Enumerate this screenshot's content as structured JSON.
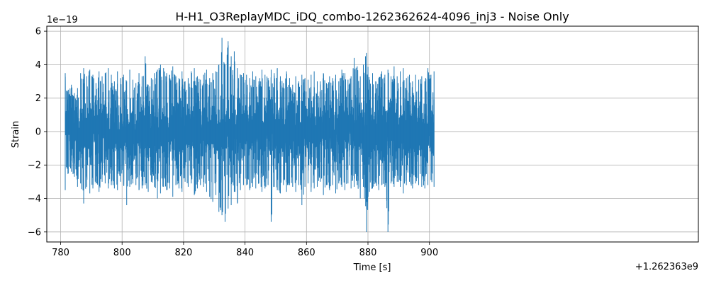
{
  "chart_data": {
    "type": "line",
    "title": "H-H1_O3ReplayMDC_iDQ_combo-1262362624-4096_inj3 - Noise Only",
    "xlabel": "Time [s]",
    "ylabel": "Strain",
    "x_offset_label": "+1.262363e9",
    "y_scale_label": "1e−19",
    "xlim": [
      775.5,
      987.5
    ],
    "ylim": [
      -6.6,
      6.3
    ],
    "x_ticks": [
      780,
      800,
      820,
      840,
      860,
      880,
      900
    ],
    "x_tick_labels": [
      "780",
      "800",
      "820",
      "840",
      "860",
      "880",
      "900"
    ],
    "y_ticks": [
      -6,
      -4,
      -2,
      0,
      2,
      4,
      6
    ],
    "y_tick_labels": [
      "−6",
      "−4",
      "−2",
      "0",
      "2",
      "4",
      "6"
    ],
    "grid": true,
    "series": [
      {
        "color": "#1f77b4",
        "x_start": 781.5,
        "x_end": 901.5,
        "envelope_x": [
          781.5,
          782.5,
          783.5,
          784.5,
          785.5,
          786.5,
          787.5,
          788.5,
          789.5,
          790.5,
          791.5,
          792.5,
          793.5,
          794.5,
          795.5,
          796.5,
          797.5,
          798.5,
          799.5,
          800.5,
          801.5,
          802.5,
          803.5,
          804.5,
          805.5,
          806.5,
          807.5,
          808.5,
          809.5,
          810.5,
          811.5,
          812.5,
          813.5,
          814.5,
          815.5,
          816.5,
          817.5,
          818.5,
          819.5,
          820.5,
          821.5,
          822.5,
          823.5,
          824.5,
          825.5,
          826.5,
          827.5,
          828.5,
          829.5,
          830.5,
          831.5,
          832.5,
          833.5,
          834.5,
          835.5,
          836.5,
          837.5,
          838.5,
          839.5,
          840.5,
          841.5,
          842.5,
          843.5,
          844.5,
          845.5,
          846.5,
          847.5,
          848.5,
          849.5,
          850.5,
          851.5,
          852.5,
          853.5,
          854.5,
          855.5,
          856.5,
          857.5,
          858.5,
          859.5,
          860.5,
          861.5,
          862.5,
          863.5,
          864.5,
          865.5,
          866.5,
          867.5,
          868.5,
          869.5,
          870.5,
          871.5,
          872.5,
          873.5,
          874.5,
          875.5,
          876.5,
          877.5,
          878.5,
          879.5,
          880.5,
          881.5,
          882.5,
          883.5,
          884.5,
          885.5,
          886.5,
          887.5,
          888.5,
          889.5,
          890.5,
          891.5,
          892.5,
          893.5,
          894.5,
          895.5,
          896.5,
          897.5,
          898.5,
          899.5,
          900.5,
          901.5
        ],
        "envelope_max": [
          3.5,
          2.5,
          2.8,
          2.3,
          2.6,
          3.5,
          3.8,
          3.3,
          3.7,
          3.4,
          2.9,
          3.6,
          3.3,
          3.5,
          3.8,
          3.4,
          3.0,
          3.6,
          3.2,
          3.4,
          3.0,
          3.7,
          3.1,
          2.9,
          3.5,
          3.3,
          4.5,
          2.8,
          3.2,
          3.5,
          3.7,
          4.0,
          3.8,
          3.5,
          3.4,
          3.9,
          3.3,
          3.2,
          3.6,
          3.0,
          3.2,
          3.6,
          3.8,
          3.3,
          3.1,
          3.4,
          3.7,
          3.2,
          3.5,
          3.6,
          4.0,
          5.6,
          4.0,
          5.4,
          4.5,
          4.8,
          3.8,
          3.4,
          3.5,
          3.4,
          3.2,
          3.6,
          3.3,
          3.0,
          3.7,
          3.4,
          3.2,
          3.7,
          3.5,
          3.8,
          3.3,
          2.9,
          3.6,
          3.2,
          2.8,
          3.3,
          3.0,
          3.4,
          3.2,
          3.1,
          3.4,
          3.6,
          3.0,
          3.0,
          3.5,
          2.9,
          3.3,
          3.2,
          3.4,
          3.0,
          3.7,
          3.5,
          3.1,
          3.3,
          4.4,
          3.9,
          3.3,
          4.0,
          4.7,
          3.1,
          3.5,
          3.0,
          3.2,
          3.6,
          3.4,
          3.7,
          3.3,
          3.9,
          3.3,
          3.6,
          3.8,
          3.2,
          3.4,
          3.0,
          3.4,
          3.1,
          3.3,
          3.0,
          3.8,
          3.4,
          3.6
        ],
        "envelope_min": [
          -3.5,
          -2.5,
          -2.4,
          -2.7,
          -3.3,
          -3.1,
          -4.3,
          -3.3,
          -3.7,
          -3.4,
          -3.1,
          -3.6,
          -3.0,
          -3.1,
          -3.4,
          -3.2,
          -3.4,
          -3.5,
          -3.0,
          -3.2,
          -4.4,
          -3.3,
          -3.1,
          -3.2,
          -3.5,
          -3.4,
          -3.2,
          -3.6,
          -3.0,
          -3.3,
          -4.0,
          -3.7,
          -3.3,
          -3.5,
          -3.4,
          -3.9,
          -3.2,
          -3.4,
          -3.6,
          -3.0,
          -3.3,
          -3.1,
          -3.8,
          -3.4,
          -3.2,
          -3.3,
          -3.6,
          -3.9,
          -4.2,
          -3.8,
          -4.8,
          -5.0,
          -5.4,
          -4.6,
          -4.4,
          -3.6,
          -4.3,
          -3.5,
          -3.2,
          -3.2,
          -3.5,
          -3.3,
          -3.4,
          -3.1,
          -3.6,
          -3.4,
          -3.2,
          -5.4,
          -3.3,
          -3.5,
          -3.7,
          -3.2,
          -3.6,
          -3.2,
          -3.3,
          -3.6,
          -3.2,
          -4.4,
          -3.3,
          -3.1,
          -3.6,
          -3.4,
          -3.3,
          -3.0,
          -3.8,
          -3.2,
          -3.5,
          -3.2,
          -3.7,
          -3.1,
          -3.3,
          -3.5,
          -3.1,
          -3.4,
          -3.3,
          -3.2,
          -4.0,
          -3.3,
          -6.0,
          -3.6,
          -3.4,
          -3.1,
          -3.5,
          -3.2,
          -3.3,
          -6.0,
          -3.1,
          -3.3,
          -3.0,
          -3.3,
          -3.7,
          -3.2,
          -3.0,
          -3.4,
          -3.1,
          -3.2,
          -3.3,
          -3.4,
          -3.2,
          -2.9,
          -3.3
        ],
        "typical_amplitude": 1.7
      }
    ]
  }
}
